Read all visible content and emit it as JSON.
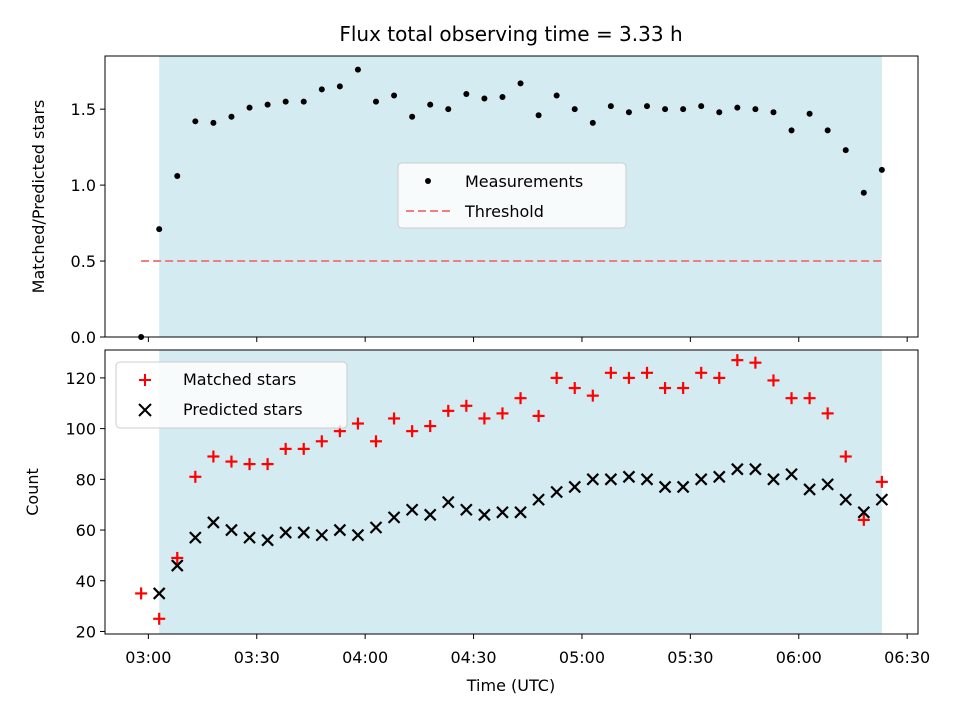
{
  "title": "Flux total observing time = 3.33 h",
  "chart_data": [
    {
      "type": "scatter",
      "panel": "top",
      "ylabel": "Matched/Predicted stars",
      "ylim": [
        0,
        1.85
      ],
      "yticks": [
        0.0,
        0.5,
        1.0,
        1.5
      ],
      "ytick_labels": [
        "0.0",
        "0.5",
        "1.0",
        "1.5"
      ],
      "grid": false,
      "legend_position": "center",
      "observing_window": {
        "start": "03:03",
        "end": "06:23",
        "color": "#d4ebf1"
      },
      "threshold": {
        "name": "Threshold",
        "value": 0.5,
        "x_start": "02:58",
        "x_end": "06:23",
        "color": "#f08080"
      },
      "series": [
        {
          "name": "Measurements",
          "marker": "dot",
          "color": "#000000",
          "x": [
            "02:58",
            "03:03",
            "03:08",
            "03:13",
            "03:18",
            "03:23",
            "03:28",
            "03:33",
            "03:38",
            "03:43",
            "03:48",
            "03:53",
            "03:58",
            "04:03",
            "04:08",
            "04:13",
            "04:18",
            "04:23",
            "04:28",
            "04:33",
            "04:38",
            "04:43",
            "04:48",
            "04:53",
            "04:58",
            "05:03",
            "05:08",
            "05:13",
            "05:18",
            "05:23",
            "05:28",
            "05:33",
            "05:38",
            "05:43",
            "05:48",
            "05:53",
            "05:58",
            "06:03",
            "06:08",
            "06:13",
            "06:18",
            "06:23"
          ],
          "y": [
            0.0,
            0.71,
            1.06,
            1.42,
            1.41,
            1.45,
            1.51,
            1.53,
            1.55,
            1.55,
            1.63,
            1.65,
            1.76,
            1.55,
            1.59,
            1.45,
            1.53,
            1.5,
            1.6,
            1.57,
            1.58,
            1.67,
            1.46,
            1.59,
            1.5,
            1.41,
            1.52,
            1.48,
            1.52,
            1.5,
            1.5,
            1.52,
            1.48,
            1.51,
            1.5,
            1.48,
            1.36,
            1.47,
            1.36,
            1.23,
            0.95,
            1.1
          ]
        }
      ]
    },
    {
      "type": "scatter",
      "panel": "bottom",
      "xlabel": "Time (UTC)",
      "ylabel": "Count",
      "ylim": [
        19,
        131
      ],
      "yticks": [
        20,
        40,
        60,
        80,
        100,
        120
      ],
      "xlim": [
        "02:48",
        "06:33"
      ],
      "xtick_labels": [
        "03:00",
        "03:30",
        "04:00",
        "04:30",
        "05:00",
        "05:30",
        "06:00",
        "06:30"
      ],
      "grid": false,
      "legend_position": "upper left",
      "observing_window": {
        "start": "03:03",
        "end": "06:23",
        "color": "#d4ebf1"
      },
      "series": [
        {
          "name": "Matched stars",
          "marker": "plus",
          "color": "#ff0000",
          "x": [
            "02:58",
            "03:03",
            "03:08",
            "03:13",
            "03:18",
            "03:23",
            "03:28",
            "03:33",
            "03:38",
            "03:43",
            "03:48",
            "03:53",
            "03:58",
            "04:03",
            "04:08",
            "04:13",
            "04:18",
            "04:23",
            "04:28",
            "04:33",
            "04:38",
            "04:43",
            "04:48",
            "04:53",
            "04:58",
            "05:03",
            "05:08",
            "05:13",
            "05:18",
            "05:23",
            "05:28",
            "05:33",
            "05:38",
            "05:43",
            "05:48",
            "05:53",
            "05:58",
            "06:03",
            "06:08",
            "06:13",
            "06:18",
            "06:23"
          ],
          "y": [
            35,
            25,
            49,
            81,
            89,
            87,
            86,
            86,
            92,
            92,
            95,
            99,
            102,
            95,
            104,
            99,
            101,
            107,
            109,
            104,
            106,
            112,
            105,
            120,
            116,
            113,
            122,
            120,
            122,
            116,
            116,
            122,
            120,
            127,
            126,
            119,
            112,
            112,
            106,
            89,
            64,
            79
          ]
        },
        {
          "name": "Predicted stars",
          "marker": "x",
          "color": "#000000",
          "x": [
            "03:03",
            "03:08",
            "03:13",
            "03:18",
            "03:23",
            "03:28",
            "03:33",
            "03:38",
            "03:43",
            "03:48",
            "03:53",
            "03:58",
            "04:03",
            "04:08",
            "04:13",
            "04:18",
            "04:23",
            "04:28",
            "04:33",
            "04:38",
            "04:43",
            "04:48",
            "04:53",
            "04:58",
            "05:03",
            "05:08",
            "05:13",
            "05:18",
            "05:23",
            "05:28",
            "05:33",
            "05:38",
            "05:43",
            "05:48",
            "05:53",
            "05:58",
            "06:03",
            "06:08",
            "06:13",
            "06:18",
            "06:23"
          ],
          "y": [
            35,
            46,
            57,
            63,
            60,
            57,
            56,
            59,
            59,
            58,
            60,
            58,
            61,
            65,
            68,
            66,
            71,
            68,
            66,
            67,
            67,
            72,
            75,
            77,
            80,
            80,
            81,
            80,
            77,
            77,
            80,
            81,
            84,
            84,
            80,
            82,
            76,
            78,
            72,
            67,
            72
          ]
        }
      ]
    }
  ]
}
